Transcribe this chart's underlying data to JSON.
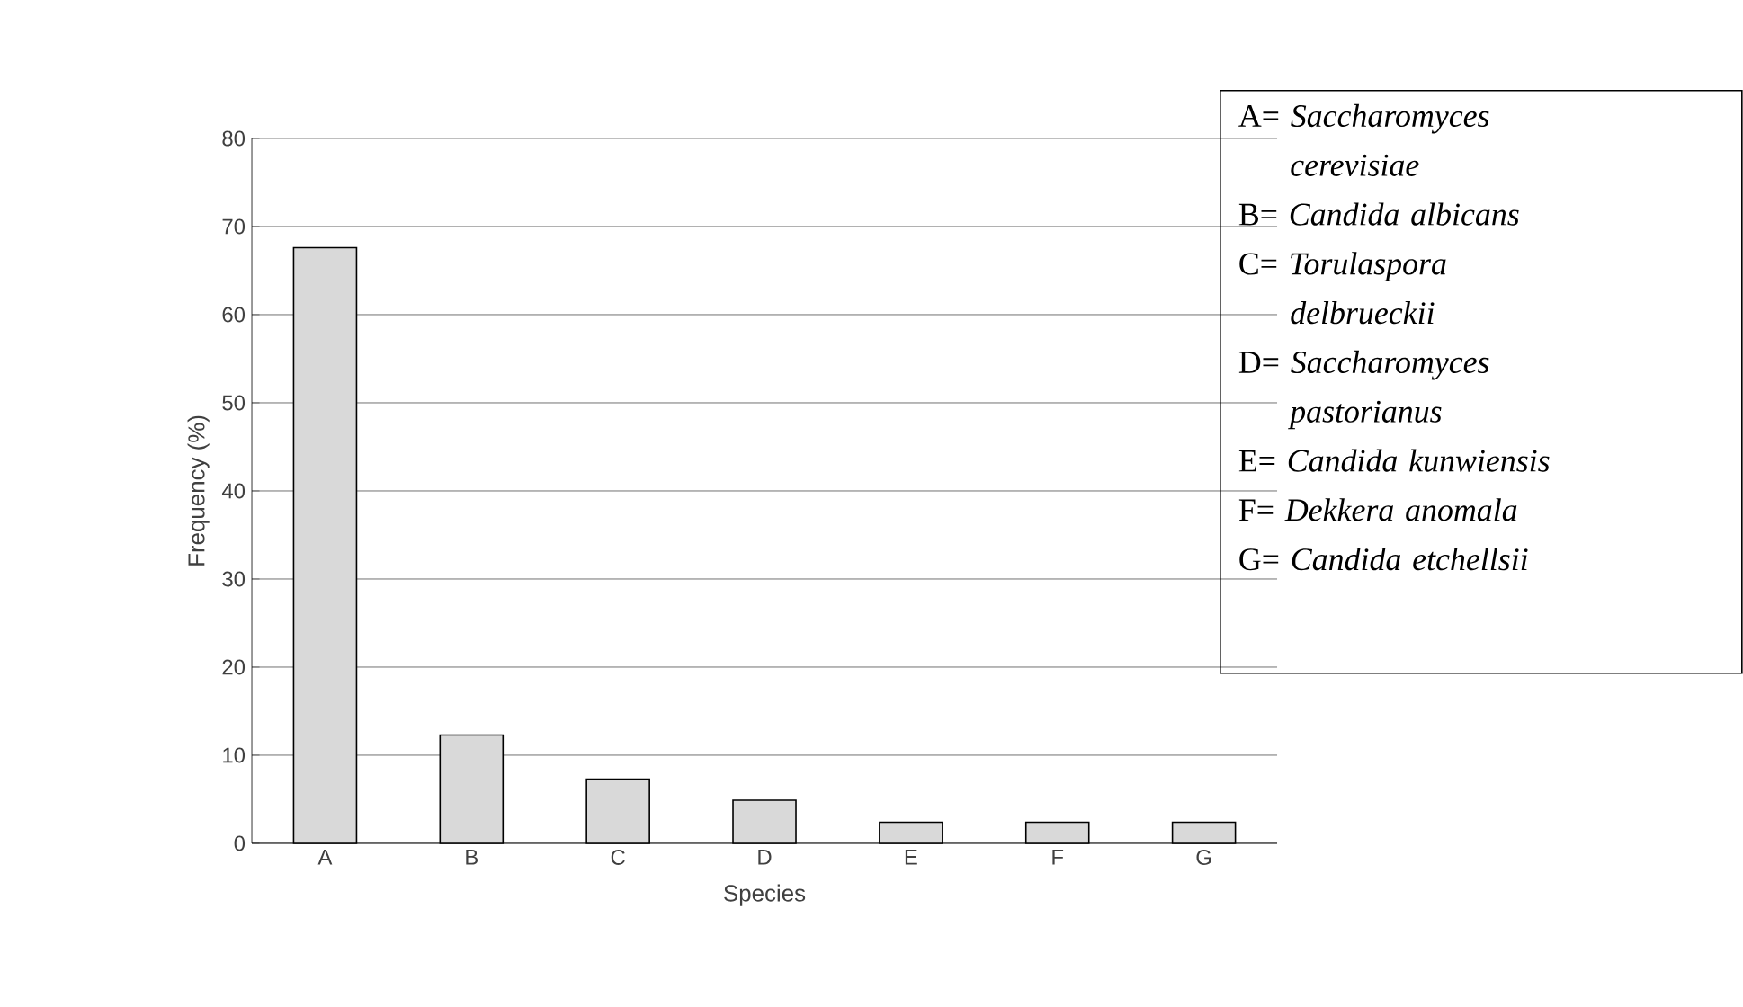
{
  "chart_data": {
    "type": "bar",
    "xlabel": "Species",
    "ylabel": "Frequency (%)",
    "categories": [
      "A",
      "B",
      "C",
      "D",
      "E",
      "F",
      "G"
    ],
    "values": [
      67.6,
      12.3,
      7.3,
      4.9,
      2.4,
      2.4,
      2.4
    ],
    "color": "#d9d9d9",
    "ylim": [
      0,
      80
    ],
    "yticks": [
      0,
      10,
      20,
      30,
      40,
      50,
      60,
      70,
      80
    ],
    "grid": "y",
    "annotations": [
      "A= *Saccharomyces cerevisiae*",
      "B= *Candida albicans*",
      "C= *Torulaspora delbrueckii*",
      "D= *Saccharomyces pastorianus*",
      "E= *Candida kunwiensis*",
      "F= *Dekkera anomala*",
      "G= *Candida etchellsii*"
    ]
  }
}
